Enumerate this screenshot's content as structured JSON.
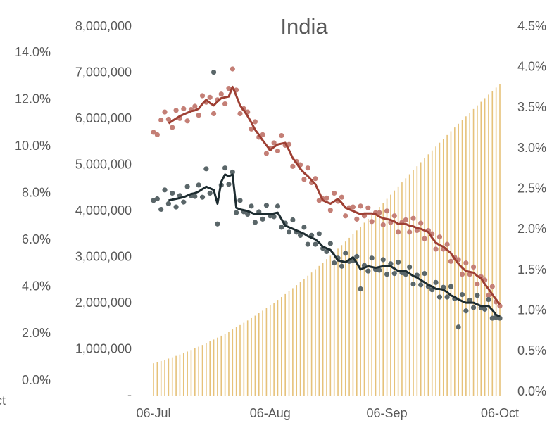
{
  "chart_data": {
    "type": "combo",
    "title": "India",
    "annotations": [
      "ct"
    ],
    "categories": [
      "06-Jul",
      null,
      null,
      null,
      null,
      null,
      null,
      null,
      null,
      null,
      null,
      null,
      null,
      null,
      null,
      null,
      null,
      null,
      null,
      null,
      null,
      null,
      null,
      null,
      null,
      null,
      null,
      null,
      null,
      null,
      null,
      "06-Aug",
      null,
      null,
      null,
      null,
      null,
      null,
      null,
      null,
      null,
      null,
      null,
      null,
      null,
      null,
      null,
      null,
      null,
      null,
      null,
      null,
      null,
      null,
      null,
      null,
      null,
      null,
      null,
      null,
      null,
      null,
      "06-Sep",
      null,
      null,
      null,
      null,
      null,
      null,
      null,
      null,
      null,
      null,
      null,
      null,
      null,
      null,
      null,
      null,
      null,
      null,
      null,
      null,
      null,
      null,
      null,
      null,
      null,
      null,
      null,
      null,
      null,
      "06-Oct"
    ],
    "ylim": [
      0,
      8000000
    ],
    "yticks": [
      {
        "value": 0,
        "label": "-"
      },
      {
        "value": 1000000,
        "label": "1,000,000"
      },
      {
        "value": 2000000,
        "label": "2,000,000"
      },
      {
        "value": 3000000,
        "label": "3,000,000"
      },
      {
        "value": 4000000,
        "label": "4,000,000"
      },
      {
        "value": 5000000,
        "label": "5,000,000"
      },
      {
        "value": 6000000,
        "label": "6,000,000"
      },
      {
        "value": 7000000,
        "label": "7,000,000"
      },
      {
        "value": 8000000,
        "label": "8,000,000"
      }
    ],
    "y2lim": [
      0,
      4.5
    ],
    "y2ticks": [
      {
        "value": 0,
        "label": "0.0%"
      },
      {
        "value": 0.5,
        "label": "0.5%"
      },
      {
        "value": 1,
        "label": "1.0%"
      },
      {
        "value": 1.5,
        "label": "1.5%"
      },
      {
        "value": 2,
        "label": "2.0%"
      },
      {
        "value": 2.5,
        "label": "2.5%"
      },
      {
        "value": 3,
        "label": "3.0%"
      },
      {
        "value": 3.5,
        "label": "3.5%"
      },
      {
        "value": 4,
        "label": "4.0%"
      },
      {
        "value": 4.5,
        "label": "4.5%"
      }
    ],
    "y3lim": [
      0,
      14
    ],
    "y3ticks": [
      {
        "value": 0,
        "label": "0.0%"
      },
      {
        "value": 2,
        "label": "2.0%"
      },
      {
        "value": 4,
        "label": "4.0%"
      },
      {
        "value": 6,
        "label": "6.0%"
      },
      {
        "value": 8,
        "label": "8.0%"
      },
      {
        "value": 10,
        "label": "10.0%"
      },
      {
        "value": 12,
        "label": "12.0%"
      },
      {
        "value": 14,
        "label": "14.0%"
      }
    ],
    "series": [
      {
        "type": "bar",
        "axis": "y",
        "color": "#e6c27a",
        "values": [
          700000,
          724000,
          749000,
          775000,
          802000,
          830000,
          860000,
          890000,
          922000,
          955000,
          989000,
          1024000,
          1060000,
          1097000,
          1135000,
          1175000,
          1215000,
          1257000,
          1299000,
          1343000,
          1388000,
          1434000,
          1481000,
          1529000,
          1578000,
          1628000,
          1680000,
          1732000,
          1786000,
          1841000,
          1897000,
          1954000,
          2014000,
          2075000,
          2137000,
          2200000,
          2264000,
          2329000,
          2395000,
          2462000,
          2530000,
          2599000,
          2669000,
          2740000,
          2812000,
          2885000,
          2959000,
          3033000,
          3109000,
          3185000,
          3263000,
          3341000,
          3421000,
          3501000,
          3583000,
          3665000,
          3749000,
          3833000,
          3918000,
          4004000,
          4091000,
          4179000,
          4267000,
          4357000,
          4447000,
          4536000,
          4625000,
          4713000,
          4801000,
          4888000,
          4975000,
          5061000,
          5147000,
          5232000,
          5317000,
          5401000,
          5485000,
          5568000,
          5651000,
          5733000,
          5815000,
          5896000,
          5977000,
          6057000,
          6137000,
          6216000,
          6295000,
          6373000,
          6451000,
          6528000,
          6605000,
          6681000,
          6757000
        ]
      },
      {
        "type": "scatter",
        "axis": "y2",
        "color": "#c47f76",
        "values": [
          3.2,
          3.17,
          3.35,
          3.45,
          3.36,
          3.26,
          3.47,
          3.37,
          3.49,
          3.34,
          3.48,
          3.52,
          3.41,
          3.65,
          3.57,
          3.63,
          3.43,
          3.6,
          3.67,
          3.55,
          3.74,
          3.98,
          3.72,
          3.43,
          3.49,
          3.45,
          3.24,
          3.33,
          3.14,
          3.17,
          2.94,
          3.0,
          3.07,
          2.97,
          3.16,
          3.04,
          3.05,
          2.78,
          2.84,
          2.8,
          2.62,
          2.76,
          2.58,
          2.63,
          2.36,
          2.38,
          2.39,
          2.24,
          2.45,
          2.35,
          2.4,
          2.17,
          2.27,
          2.28,
          2.13,
          2.29,
          2.17,
          2.27,
          2.1,
          2.21,
          2.21,
          2.06,
          2.23,
          2.09,
          2.17,
          1.97,
          2.09,
          2.12,
          1.97,
          2.14,
          1.99,
          2.08,
          1.89,
          1.99,
          1.95,
          1.76,
          1.91,
          1.76,
          1.82,
          1.61,
          1.66,
          1.63,
          1.45,
          1.59,
          1.45,
          1.54,
          1.33,
          1.42,
          1.38,
          1.19,
          1.3,
          1.11,
          1.06
        ]
      },
      {
        "type": "scatter",
        "axis": "y2",
        "color": "#5a6669",
        "values": [
          2.36,
          2.38,
          2.25,
          2.49,
          2.32,
          2.45,
          2.28,
          2.42,
          2.34,
          2.53,
          2.42,
          2.41,
          2.55,
          2.4,
          2.75,
          2.45,
          3.94,
          2.07,
          2.55,
          2.76,
          2.56,
          2.71,
          2.21,
          2.36,
          2.22,
          2.19,
          2.29,
          2.09,
          2.22,
          2.13,
          2.3,
          2.17,
          2.16,
          2.29,
          2.03,
          2.08,
          1.97,
          2.12,
          1.97,
          1.93,
          2.03,
          1.82,
          1.93,
          1.82,
          1.95,
          1.77,
          1.73,
          1.83,
          1.59,
          1.65,
          1.55,
          1.71,
          1.61,
          1.62,
          1.67,
          1.27,
          1.56,
          1.49,
          1.65,
          1.51,
          1.5,
          1.63,
          1.45,
          1.58,
          1.46,
          1.6,
          1.47,
          1.45,
          1.54,
          1.33,
          1.44,
          1.32,
          1.46,
          1.3,
          1.26,
          1.35,
          1.17,
          1.29,
          1.17,
          1.3,
          1.15,
          0.8,
          1.2,
          1.0,
          1.13,
          1.04,
          1.19,
          1.04,
          1.02,
          1.14,
          0.91,
          0.92,
          0.91
        ]
      },
      {
        "type": "line",
        "axis": "y2",
        "color": "#9e3f33",
        "values": [
          null,
          null,
          null,
          null,
          3.31,
          3.34,
          3.37,
          3.4,
          3.42,
          3.44,
          3.46,
          3.47,
          3.49,
          3.55,
          3.6,
          3.56,
          3.53,
          3.58,
          3.62,
          3.63,
          3.64,
          3.76,
          3.65,
          3.53,
          3.47,
          3.4,
          3.32,
          3.23,
          3.17,
          3.1,
          3.04,
          2.98,
          3.02,
          3.05,
          3.06,
          3.07,
          2.98,
          2.88,
          2.82,
          2.75,
          2.7,
          2.66,
          2.61,
          2.56,
          2.46,
          2.36,
          2.34,
          2.32,
          2.35,
          2.38,
          2.33,
          2.27,
          2.25,
          2.23,
          2.21,
          2.19,
          2.2,
          2.2,
          2.2,
          2.19,
          2.16,
          2.14,
          2.13,
          2.12,
          2.1,
          2.07,
          2.07,
          2.07,
          2.05,
          2.04,
          2.02,
          2.01,
          1.99,
          1.97,
          1.9,
          1.84,
          1.81,
          1.79,
          1.75,
          1.71,
          1.64,
          1.58,
          1.53,
          1.49,
          1.48,
          1.47,
          1.43,
          1.4,
          1.33,
          1.27,
          1.2,
          1.14,
          1.08
        ]
      },
      {
        "type": "line",
        "axis": "y2",
        "color": "#1d2c30",
        "values": [
          null,
          null,
          null,
          null,
          2.36,
          2.37,
          2.38,
          2.39,
          2.4,
          2.42,
          2.44,
          2.45,
          2.47,
          2.5,
          2.53,
          2.51,
          2.49,
          2.32,
          2.59,
          2.68,
          2.66,
          2.68,
          2.27,
          2.25,
          2.24,
          2.23,
          2.21,
          2.19,
          2.19,
          2.19,
          2.19,
          2.19,
          2.2,
          2.21,
          2.13,
          2.05,
          2.03,
          2.01,
          1.99,
          1.97,
          1.95,
          1.92,
          1.9,
          1.88,
          1.84,
          1.79,
          1.77,
          1.75,
          1.69,
          1.62,
          1.61,
          1.6,
          1.63,
          1.66,
          1.59,
          1.51,
          1.53,
          1.55,
          1.54,
          1.53,
          1.54,
          1.55,
          1.55,
          1.55,
          1.52,
          1.49,
          1.49,
          1.49,
          1.46,
          1.43,
          1.41,
          1.38,
          1.35,
          1.32,
          1.3,
          1.27,
          1.27,
          1.26,
          1.23,
          1.19,
          1.17,
          1.14,
          1.12,
          1.1,
          1.1,
          1.1,
          1.08,
          1.06,
          1.06,
          1.06,
          1.01,
          0.95,
          0.93
        ]
      }
    ]
  }
}
